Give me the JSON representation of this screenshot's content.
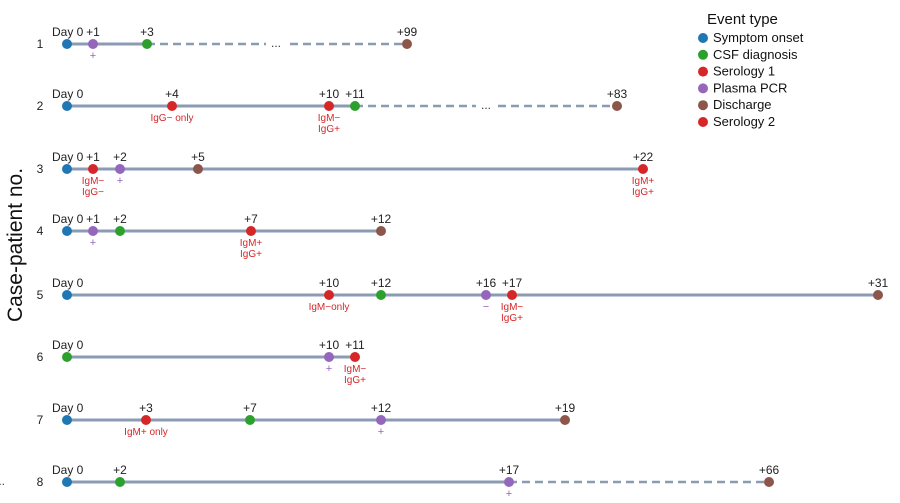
{
  "chart_data": {
    "type": "timeline",
    "ylabel": "Case-patient no.",
    "legend": {
      "title": "Event type",
      "placement": "top-right",
      "items": [
        {
          "key": "onset",
          "label": "Symptom onset",
          "color": "#1f77b4"
        },
        {
          "key": "csf",
          "label": "CSF diagnosis",
          "color": "#2ca02c"
        },
        {
          "key": "sero1",
          "label": "Serology 1",
          "color": "#d62728"
        },
        {
          "key": "pcr",
          "label": "Plasma PCR",
          "color": "#9467bd"
        },
        {
          "key": "discharge",
          "label": "Discharge",
          "color": "#8c564b"
        },
        {
          "key": "sero2",
          "label": "Serology 2",
          "color": "#d62728"
        }
      ]
    },
    "gap_symbol": "...",
    "patients": [
      {
        "id": "1",
        "gap": {
          "from": 3,
          "to": 99
        },
        "events": [
          {
            "day": 0,
            "label": "Day 0",
            "type": "onset"
          },
          {
            "day": 1,
            "label": "+1",
            "type": "pcr",
            "result": [
              "+"
            ]
          },
          {
            "day": 3,
            "label": "+3",
            "type": "csf"
          },
          {
            "day": 99,
            "label": "+99",
            "type": "discharge"
          }
        ]
      },
      {
        "id": "2",
        "gap": {
          "from": 11,
          "to": 83
        },
        "events": [
          {
            "day": 0,
            "label": "Day 0",
            "type": "onset"
          },
          {
            "day": 4,
            "label": "+4",
            "type": "sero1",
            "result": [
              "IgG− only"
            ]
          },
          {
            "day": 10,
            "label": "+10",
            "type": "sero2",
            "result": [
              "IgM−",
              "IgG+"
            ]
          },
          {
            "day": 11,
            "label": "+11",
            "type": "csf"
          },
          {
            "day": 83,
            "label": "+83",
            "type": "discharge"
          }
        ]
      },
      {
        "id": "3",
        "events": [
          {
            "day": 0,
            "label": "Day 0",
            "type": "onset"
          },
          {
            "day": 1,
            "label": "+1",
            "type": "sero1",
            "result": [
              "IgM−",
              "IgG−"
            ]
          },
          {
            "day": 2,
            "label": "+2",
            "type": "pcr",
            "result": [
              "+"
            ]
          },
          {
            "day": 5,
            "label": "+5",
            "type": "discharge"
          },
          {
            "day": 22,
            "label": "+22",
            "type": "sero2",
            "result": [
              "IgM+",
              "IgG+"
            ]
          }
        ]
      },
      {
        "id": "4",
        "events": [
          {
            "day": 0,
            "label": "Day 0",
            "type": "onset"
          },
          {
            "day": 1,
            "label": "+1",
            "type": "pcr",
            "result": [
              "+"
            ]
          },
          {
            "day": 2,
            "label": "+2",
            "type": "csf"
          },
          {
            "day": 7,
            "label": "+7",
            "type": "sero1",
            "result": [
              "IgM+",
              "IgG+"
            ]
          },
          {
            "day": 12,
            "label": "+12",
            "type": "discharge"
          }
        ]
      },
      {
        "id": "5",
        "events": [
          {
            "day": 0,
            "label": "Day 0",
            "type": "onset"
          },
          {
            "day": 10,
            "label": "+10",
            "type": "sero1",
            "result": [
              "IgM−only"
            ]
          },
          {
            "day": 12,
            "label": "+12",
            "type": "csf"
          },
          {
            "day": 16,
            "label": "+16",
            "type": "pcr",
            "result": [
              "−"
            ]
          },
          {
            "day": 17,
            "label": "+17",
            "type": "sero2",
            "result": [
              "IgM−",
              "IgG+"
            ]
          },
          {
            "day": 31,
            "label": "+31",
            "type": "discharge"
          }
        ]
      },
      {
        "id": "6",
        "events": [
          {
            "day": 0,
            "label": "Day 0",
            "type": "csf"
          },
          {
            "day": 10,
            "label": "+10",
            "type": "pcr",
            "result": [
              "+"
            ]
          },
          {
            "day": 11,
            "label": "+11",
            "type": "sero1",
            "result": [
              "IgM−",
              "IgG+"
            ]
          }
        ]
      },
      {
        "id": "7",
        "events": [
          {
            "day": 0,
            "label": "Day 0",
            "type": "onset"
          },
          {
            "day": 3,
            "label": "+3",
            "type": "sero1",
            "result": [
              "IgM+ only"
            ]
          },
          {
            "day": 7,
            "label": "+7",
            "type": "csf"
          },
          {
            "day": 12,
            "label": "+12",
            "type": "pcr",
            "result": [
              "+"
            ]
          },
          {
            "day": 19,
            "label": "+19",
            "type": "discharge"
          }
        ]
      },
      {
        "id": "8",
        "gap": {
          "from": 17,
          "to": 66
        },
        "events": [
          {
            "day": 0,
            "label": "Day 0",
            "type": "onset"
          },
          {
            "day": 2,
            "label": "+2",
            "type": "csf"
          },
          {
            "day": 17,
            "label": "+17",
            "type": "pcr",
            "result": [
              "+"
            ]
          },
          {
            "day": 66,
            "label": "+66",
            "type": "discharge"
          }
        ]
      }
    ]
  }
}
